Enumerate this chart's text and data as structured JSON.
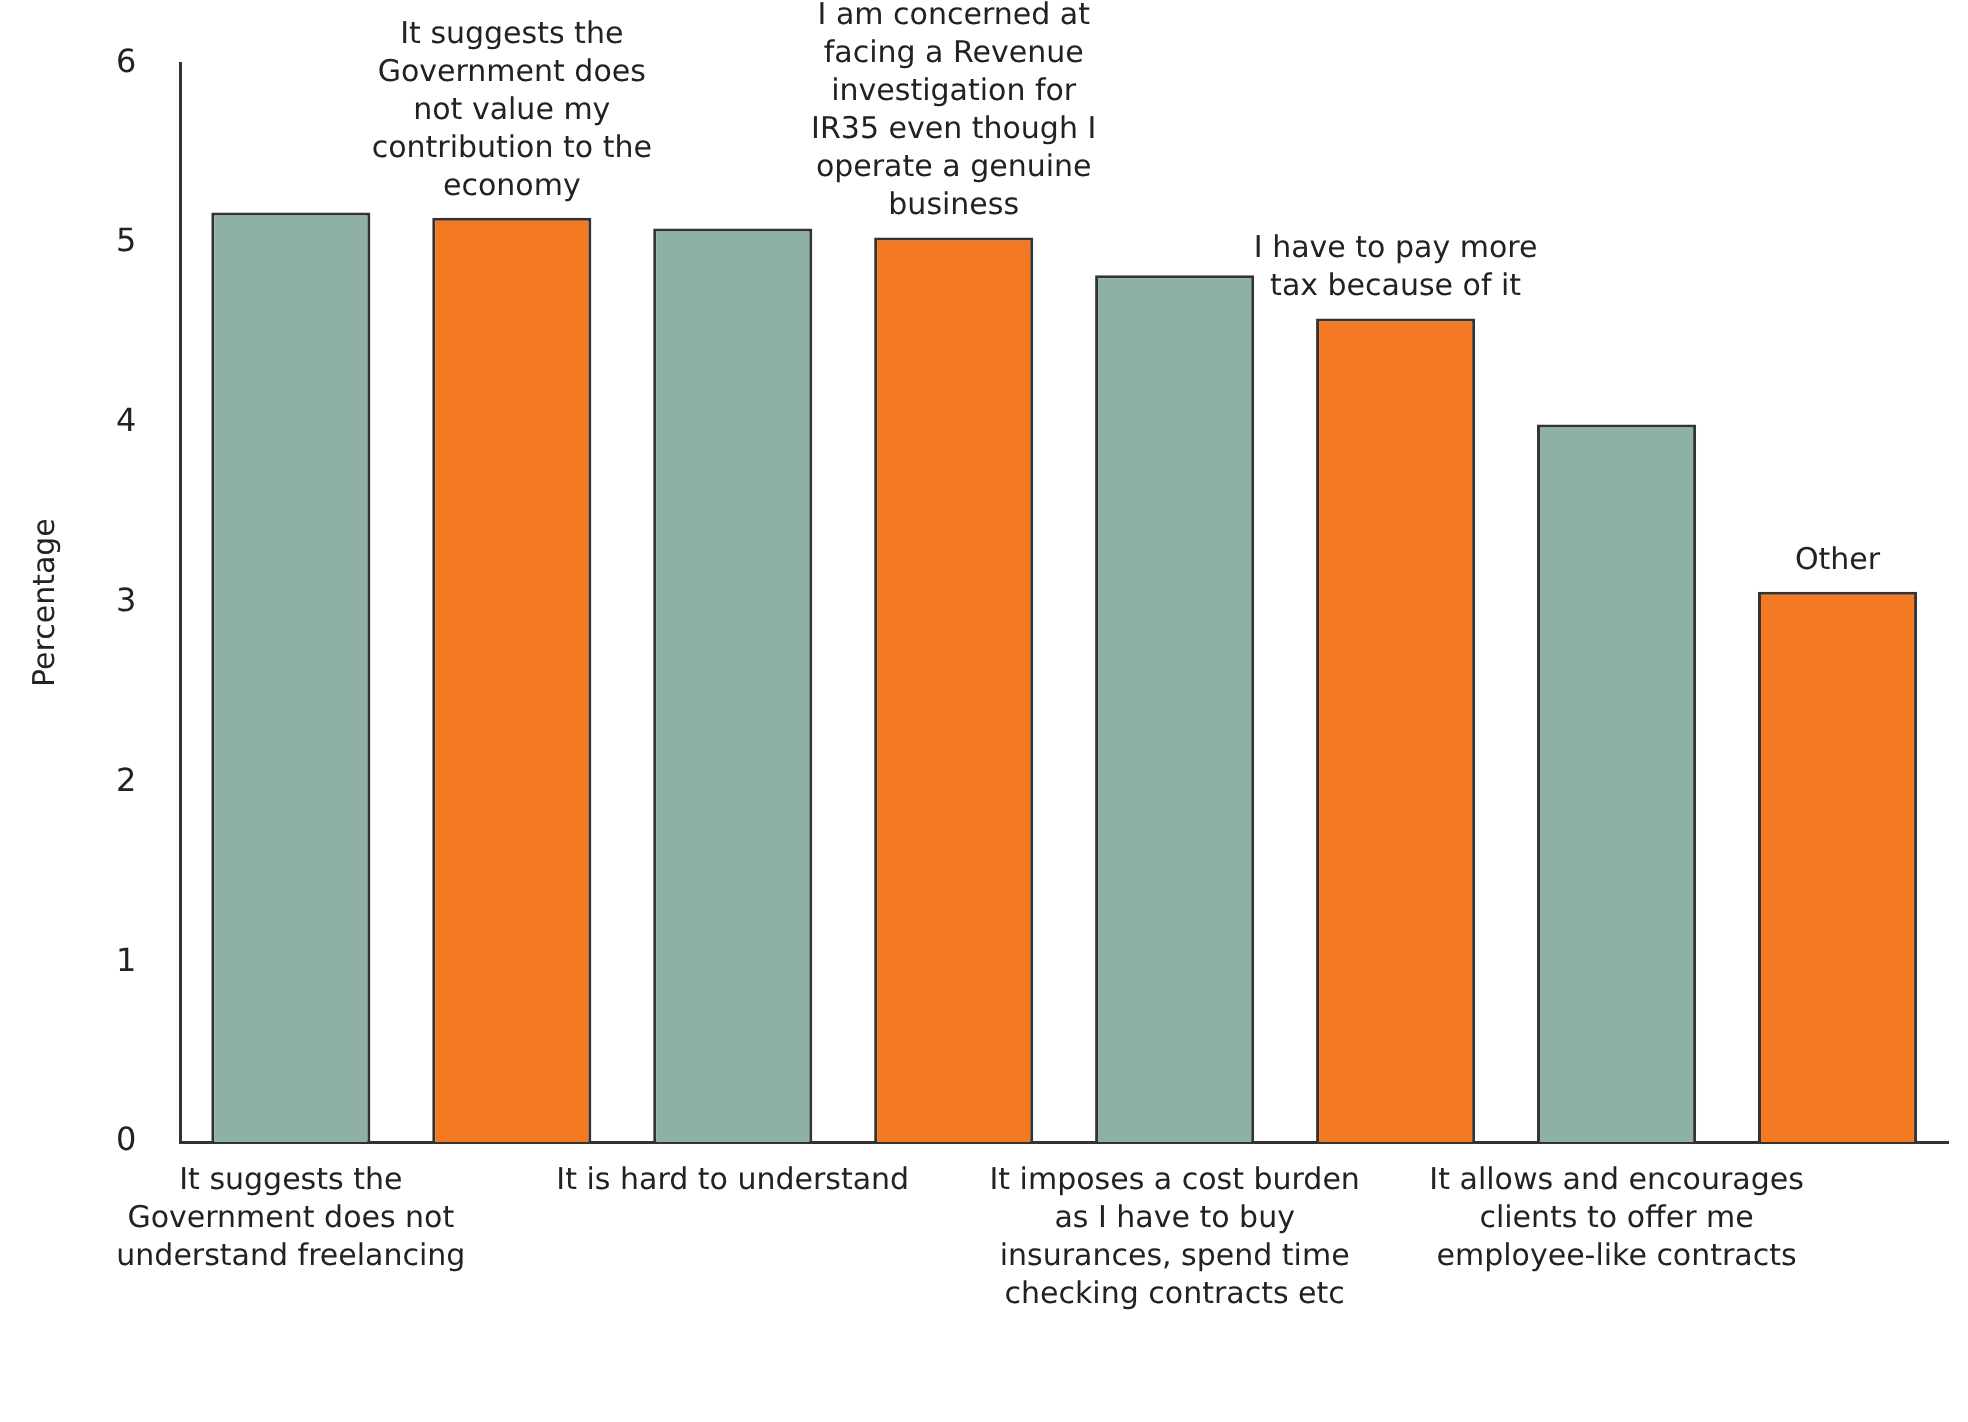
{
  "chart_data": {
    "type": "bar",
    "ylabel": "Percentage",
    "categories": [
      "It suggests the Government does not understand freelancing",
      "It suggests the Government does not value my contribution to the economy",
      "It is hard to understand",
      "I am concerned at facing a Revenue investigation for IR35 even though I operate a genuine business",
      "It imposes a cost burden as I have to buy insurances, spend time checking contracts etc",
      "I have to pay more tax because of it",
      "It allows and encourages clients to offer me employee-like contracts",
      "Other"
    ],
    "values": [
      5.17,
      5.14,
      5.08,
      5.03,
      4.82,
      4.58,
      3.99,
      3.06
    ],
    "colors": [
      "#8fb0a7",
      "#f37a22",
      "#8fb0a7",
      "#f37a22",
      "#8fb0a7",
      "#f37a22",
      "#8fb0a7",
      "#f37a22"
    ],
    "ylim": [
      0,
      6
    ],
    "yticks": [
      0,
      1,
      2,
      3,
      4,
      5,
      6
    ],
    "grid": false,
    "legend": false
  }
}
